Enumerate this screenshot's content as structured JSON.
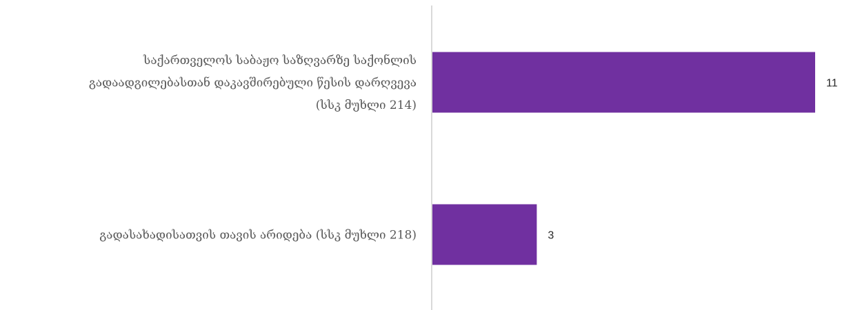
{
  "chart_data": {
    "type": "bar",
    "orientation": "horizontal",
    "categories": [
      [
        "საქართველოს საბაჟო საზღვარზე საქონლის",
        "გადაადგილებასთან დაკავშირებული წესის დარღვევა",
        "(სსკ მუხლი 214)"
      ],
      [
        "გადასახადისათვის თავის არიდება  (სსკ მუხლი 218)"
      ]
    ],
    "values": [
      11,
      3
    ],
    "value_labels": [
      "11",
      "3"
    ],
    "xlim": [
      0,
      11
    ],
    "bar_color": "#7030A0",
    "axis_color": "#d9d9d9",
    "grid": false,
    "legend": "none"
  }
}
